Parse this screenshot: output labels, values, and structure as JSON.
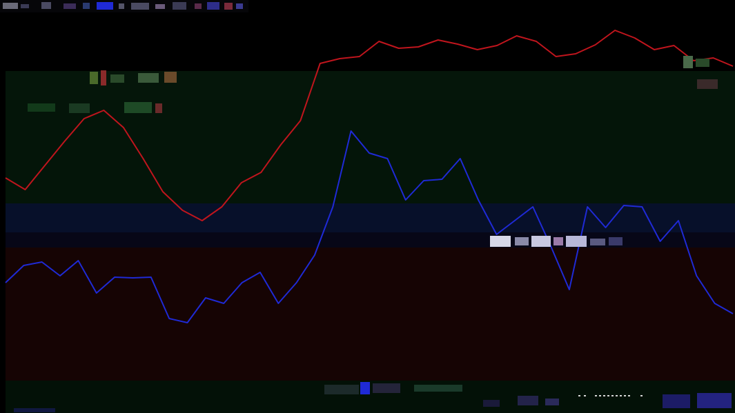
{
  "colors": {
    "background": "#000000",
    "band_1": "#05160a",
    "band_2": "#041509",
    "band_3": "#07102a",
    "band_4": "#070717",
    "band_5": "#160404",
    "band_6": "#031107",
    "series_red": "#c0151d",
    "series_blue": "#1f2ad6",
    "marker_glitch": "#d8d8e8"
  },
  "icons": {
    "top_strip": "toolbar-glitch-icons",
    "status_bar": "statusbar-glitch-icons"
  },
  "chart_data": {
    "type": "line",
    "series": [
      {
        "values": [
          258,
          275,
          240,
          205,
          172,
          160,
          185,
          230,
          278,
          305,
          320,
          300,
          265,
          250,
          210,
          175,
          92,
          85,
          82,
          60,
          70,
          68,
          58,
          64,
          72,
          66,
          52,
          60,
          82,
          78,
          65,
          44,
          55,
          72,
          66,
          88,
          84,
          96
        ]
      },
      {
        "values": [
          410,
          385,
          380,
          400,
          378,
          425,
          402,
          403,
          402,
          462,
          468,
          432,
          440,
          410,
          395,
          440,
          410,
          370,
          300,
          190,
          222,
          230,
          290,
          262,
          260,
          230,
          290,
          340,
          320,
          300,
          358,
          420,
          300,
          330,
          298,
          300,
          350,
          320,
          400,
          440,
          455
        ]
      }
    ]
  }
}
